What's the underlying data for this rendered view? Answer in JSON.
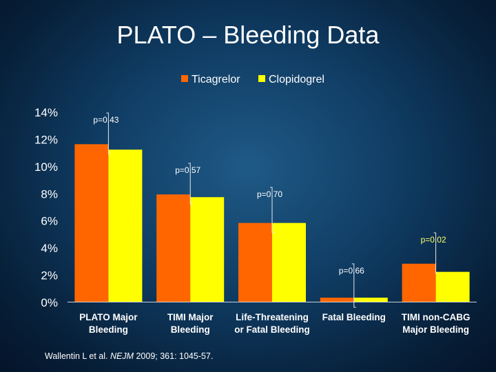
{
  "slide": {
    "title": "PLATO – Bleeding Data",
    "citation": {
      "prefix": "Wallentin L et al. ",
      "journal": "NEJM",
      "suffix": " 2009; 361: 1045-57."
    }
  },
  "colors": {
    "ticagrelor": "#ff6600",
    "clopidogrel": "#ffff00",
    "pvalue_highlight": "#ffff66",
    "text": "#ffffff"
  },
  "chart_data": {
    "type": "bar",
    "title": "",
    "xlabel": "",
    "ylabel": "",
    "ylim": [
      0,
      14
    ],
    "y_ticks": [
      0,
      2,
      4,
      6,
      8,
      10,
      12,
      14
    ],
    "y_tick_labels": [
      "0%",
      "2%",
      "4%",
      "6%",
      "8%",
      "10%",
      "12%",
      "14%"
    ],
    "legend_position": "top",
    "categories": [
      [
        "PLATO Major",
        "Bleeding"
      ],
      [
        "TIMI Major",
        "Bleeding"
      ],
      [
        "Life-Threatening",
        "or Fatal Bleeding"
      ],
      [
        "Fatal Bleeding"
      ],
      [
        "TIMI non-CABG",
        "Major Bleeding"
      ]
    ],
    "series": [
      {
        "name": "Ticagrelor",
        "values": [
          11.6,
          7.9,
          5.8,
          0.3,
          2.8
        ]
      },
      {
        "name": "Clopidogrel",
        "values": [
          11.2,
          7.7,
          5.8,
          0.3,
          2.2
        ]
      }
    ],
    "annotations": [
      {
        "category": 0,
        "text": "p=0.43",
        "highlight": false
      },
      {
        "category": 1,
        "text": "p=0.57",
        "highlight": false
      },
      {
        "category": 2,
        "text": "p=0.70",
        "highlight": false
      },
      {
        "category": 3,
        "text": "p=0.66",
        "highlight": false
      },
      {
        "category": 4,
        "text": "p=0.02",
        "highlight": true
      }
    ]
  }
}
